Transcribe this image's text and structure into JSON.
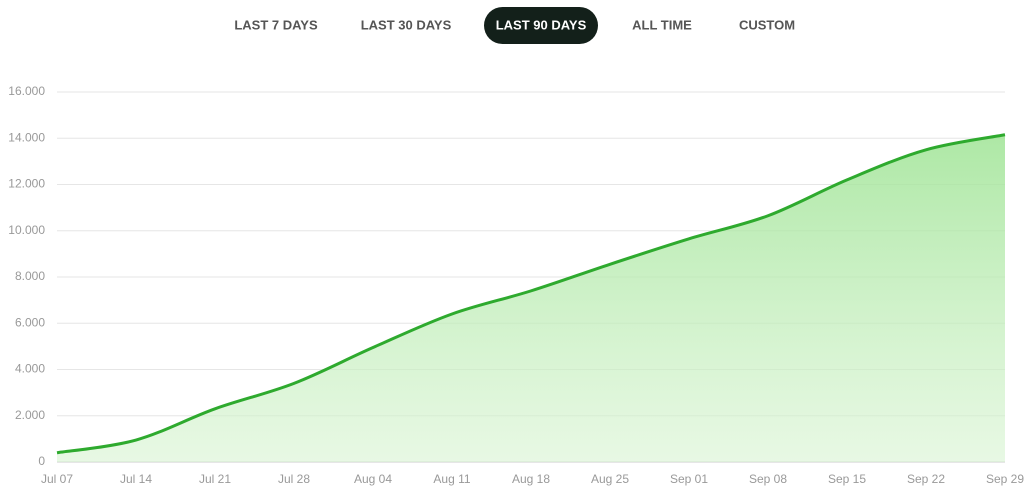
{
  "tabs": [
    "LAST 7 DAYS",
    "LAST 30 DAYS",
    "LAST 90 DAYS",
    "ALL TIME",
    "CUSTOM"
  ],
  "active_tab": 2,
  "chart_data": {
    "type": "area",
    "categories": [
      "Jul 07",
      "Jul 14",
      "Jul 21",
      "Jul 28",
      "Aug 04",
      "Aug 11",
      "Aug 18",
      "Aug 25",
      "Sep 01",
      "Sep 08",
      "Sep 15",
      "Sep 22",
      "Sep 29"
    ],
    "values": [
      400,
      950,
      2300,
      3400,
      4950,
      6400,
      7400,
      8550,
      9650,
      10650,
      12200,
      13500,
      14150
    ],
    "color": "#2eaa2e",
    "ylim": [
      0,
      16000
    ],
    "yticks": [
      0,
      {
        "value": 2000,
        "label": "2.000"
      },
      {
        "value": 4000,
        "label": "4.000"
      },
      {
        "value": 6000,
        "label": "6.000"
      },
      {
        "value": 8000,
        "label": "8.000"
      },
      {
        "value": 10000,
        "label": "10.000"
      },
      {
        "value": 12000,
        "label": "12.000"
      },
      {
        "value": 14000,
        "label": "14.000"
      },
      {
        "value": 16000,
        "label": "16.000"
      }
    ],
    "grid": true
  }
}
